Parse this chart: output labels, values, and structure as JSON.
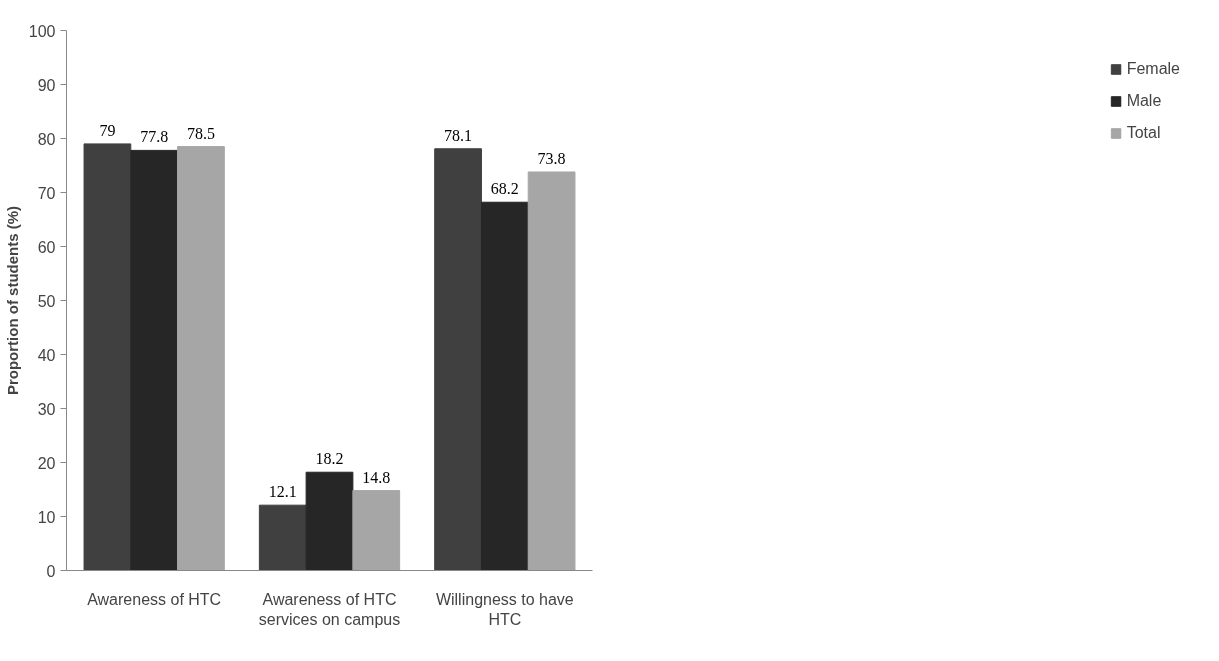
{
  "chart_data": {
    "type": "bar",
    "ylabel": "Proportion of students (%)",
    "categories": [
      "Awareness of HTC",
      "Awareness of HTC services on campus",
      "Willingness to have HTC"
    ],
    "series": [
      {
        "name": "Female",
        "color": "#404040",
        "values": [
          79,
          12.1,
          78.1
        ]
      },
      {
        "name": "Male",
        "color": "#262626",
        "values": [
          77.8,
          18.2,
          68.2
        ]
      },
      {
        "name": "Total",
        "color": "#a6a6a6",
        "values": [
          78.5,
          14.8,
          73.8
        ]
      }
    ],
    "ylim": [
      0,
      100
    ],
    "yticks": [
      0,
      10,
      20,
      30,
      40,
      50,
      60,
      70,
      80,
      90,
      100
    ],
    "data_labels": true,
    "legend": "right",
    "grid": false
  }
}
